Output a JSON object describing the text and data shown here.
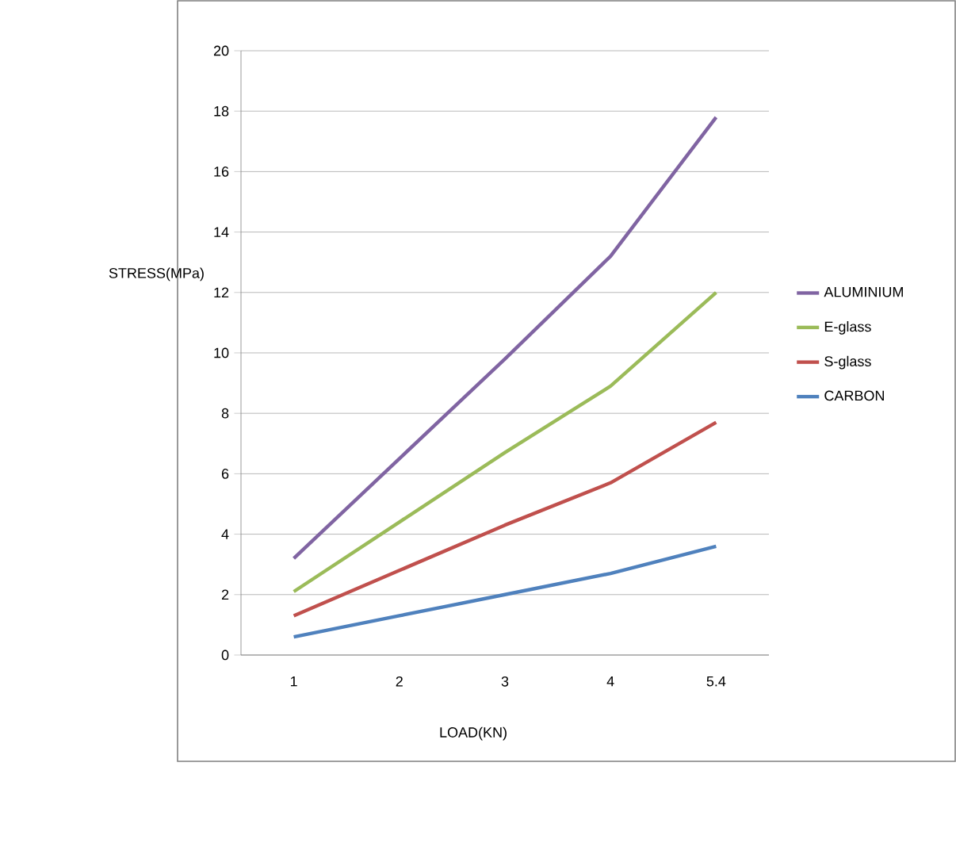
{
  "chart_data": {
    "type": "line",
    "xlabel": "LOAD(KN)",
    "ylabel": "STRESS(MPa)",
    "categories": [
      "1",
      "2",
      "3",
      "4",
      "5.4"
    ],
    "series": [
      {
        "name": "ALUMINIUM",
        "color": "#8064a2",
        "values": [
          3.2,
          6.5,
          9.8,
          13.2,
          17.8
        ]
      },
      {
        "name": "E-glass",
        "color": "#9bbb59",
        "values": [
          2.1,
          4.4,
          6.7,
          8.9,
          12.0
        ]
      },
      {
        "name": "S-glass",
        "color": "#c0504d",
        "values": [
          1.3,
          2.8,
          4.3,
          5.7,
          7.7
        ]
      },
      {
        "name": "CARBON",
        "color": "#4f81bd",
        "values": [
          0.6,
          1.3,
          2.0,
          2.7,
          3.6
        ]
      }
    ],
    "ylim": [
      0,
      20
    ],
    "yticks": [
      0,
      2,
      4,
      6,
      8,
      10,
      12,
      14,
      16,
      18,
      20
    ],
    "grid": "y",
    "legend": "right",
    "marker": "none",
    "line_style": "solid"
  }
}
